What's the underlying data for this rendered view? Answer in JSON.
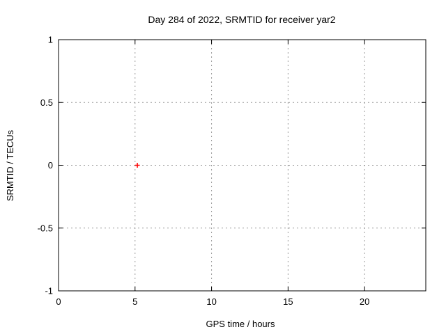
{
  "chart_data": {
    "type": "scatter",
    "title": "Day 284 of 2022, SRMTID for receiver yar2",
    "xlabel": "GPS time / hours",
    "ylabel": "SRMTID / TECUs",
    "xlim": [
      0,
      24
    ],
    "ylim": [
      -1,
      1
    ],
    "xticks": [
      {
        "value": 0,
        "label": "0"
      },
      {
        "value": 5,
        "label": "5"
      },
      {
        "value": 10,
        "label": "10"
      },
      {
        "value": 15,
        "label": "15"
      },
      {
        "value": 20,
        "label": "20"
      }
    ],
    "yticks": [
      {
        "value": -1,
        "label": "-1"
      },
      {
        "value": -0.5,
        "label": "-0.5"
      },
      {
        "value": 0,
        "label": "0"
      },
      {
        "value": 0.5,
        "label": "0.5"
      },
      {
        "value": 1,
        "label": "1"
      }
    ],
    "grid": true,
    "legend": "none",
    "series": [
      {
        "name": "SRMTID",
        "marker": "plus",
        "color": "#ff0000",
        "points": [
          {
            "x": 5.15,
            "y": 0
          }
        ]
      }
    ],
    "colors": {
      "background": "#ffffff",
      "border": "#000000",
      "grid": "#9a9a9a",
      "text": "#000000"
    }
  }
}
